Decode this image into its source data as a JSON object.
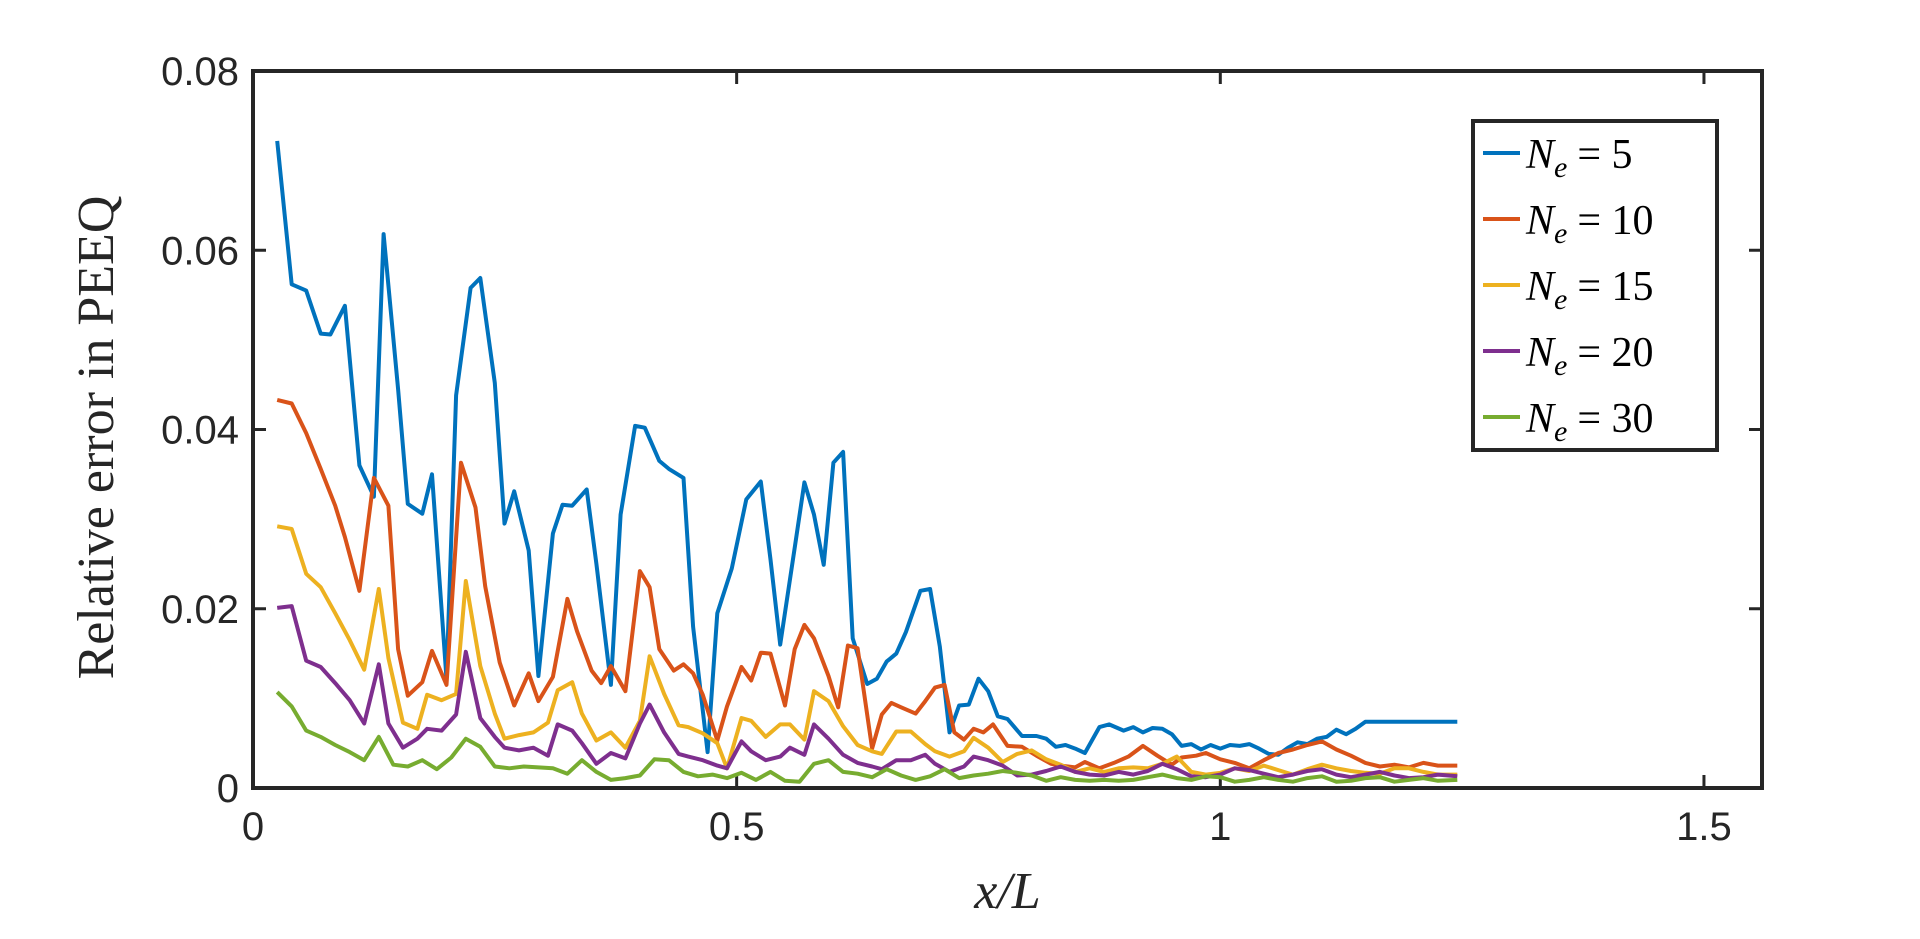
{
  "chart_data": {
    "type": "line",
    "xlabel": "x/L",
    "ylabel": "Relative error in PEEQ",
    "xlim": [
      0,
      1.56
    ],
    "ylim": [
      0,
      0.08
    ],
    "xticks": [
      0,
      0.5,
      1,
      1.5
    ],
    "xtick_labels": [
      "0",
      "0.5",
      "1",
      "1.5"
    ],
    "yticks": [
      0,
      0.02,
      0.04,
      0.06,
      0.08
    ],
    "ytick_labels": [
      "0",
      "0.02",
      "0.04",
      "0.06",
      "0.08"
    ],
    "grid": false,
    "legend_position": "top-right",
    "series": [
      {
        "name": "N_e = 5",
        "legend_base": "N",
        "legend_sub": "e",
        "legend_rhs": "= 5",
        "color": "#0072BD",
        "x": [
          0.025,
          0.04,
          0.055,
          0.07,
          0.08,
          0.095,
          0.11,
          0.125,
          0.135,
          0.15,
          0.16,
          0.175,
          0.185,
          0.2,
          0.21,
          0.225,
          0.235,
          0.25,
          0.26,
          0.27,
          0.285,
          0.295,
          0.31,
          0.32,
          0.33,
          0.345,
          0.355,
          0.37,
          0.38,
          0.395,
          0.405,
          0.42,
          0.43,
          0.445,
          0.455,
          0.47,
          0.48,
          0.495,
          0.51,
          0.525,
          0.535,
          0.545,
          0.56,
          0.57,
          0.58,
          0.59,
          0.6,
          0.61,
          0.62,
          0.635,
          0.645,
          0.655,
          0.665,
          0.675,
          0.69,
          0.7,
          0.71,
          0.72,
          0.73,
          0.74,
          0.75,
          0.76,
          0.77,
          0.78,
          0.795,
          0.81,
          0.82,
          0.83,
          0.84,
          0.85,
          0.86,
          0.875,
          0.885,
          0.9,
          0.91,
          0.92,
          0.93,
          0.94,
          0.95,
          0.96,
          0.97,
          0.98,
          0.99,
          1.0,
          1.01,
          1.02,
          1.03,
          1.04,
          1.05,
          1.06,
          1.07,
          1.08,
          1.09,
          1.1,
          1.11,
          1.12,
          1.13,
          1.14,
          1.15,
          1.16,
          1.17,
          1.18,
          1.19,
          1.2,
          1.21,
          1.22,
          1.23,
          1.245
        ],
        "values": [
          0.0722,
          0.0562,
          0.0555,
          0.0507,
          0.0506,
          0.0538,
          0.036,
          0.0325,
          0.0618,
          0.0445,
          0.0317,
          0.0306,
          0.035,
          0.0122,
          0.0438,
          0.0558,
          0.0569,
          0.0452,
          0.0295,
          0.0331,
          0.0265,
          0.0125,
          0.0284,
          0.0316,
          0.0315,
          0.0333,
          0.025,
          0.0115,
          0.0305,
          0.0404,
          0.0402,
          0.0365,
          0.0356,
          0.0346,
          0.018,
          0.004,
          0.0195,
          0.0245,
          0.0322,
          0.0342,
          0.0255,
          0.016,
          0.0268,
          0.0341,
          0.0305,
          0.0249,
          0.0363,
          0.0375,
          0.0167,
          0.0116,
          0.0122,
          0.0141,
          0.015,
          0.0174,
          0.022,
          0.0222,
          0.0158,
          0.0062,
          0.0092,
          0.0093,
          0.0122,
          0.0108,
          0.008,
          0.0077,
          0.0058,
          0.0058,
          0.0055,
          0.0046,
          0.0048,
          0.0044,
          0.0039,
          0.0068,
          0.0071,
          0.0064,
          0.0068,
          0.0062,
          0.0067,
          0.0066,
          0.006,
          0.0047,
          0.0049,
          0.0043,
          0.0048,
          0.0044,
          0.0048,
          0.0047,
          0.0049,
          0.0044,
          0.0038,
          0.0037,
          0.0045,
          0.0051,
          0.0049,
          0.0055,
          0.0057,
          0.0065,
          0.006,
          0.0066,
          0.0074,
          0.0074,
          0.0074,
          0.0074,
          0.0074,
          0.0074,
          0.0074,
          0.0074,
          0.0074,
          0.0074
        ]
      },
      {
        "name": "N_e = 10",
        "legend_base": "N",
        "legend_sub": "e",
        "legend_rhs": "= 10",
        "color": "#D95319",
        "x": [
          0.025,
          0.04,
          0.055,
          0.07,
          0.085,
          0.095,
          0.11,
          0.125,
          0.14,
          0.15,
          0.16,
          0.175,
          0.185,
          0.2,
          0.215,
          0.23,
          0.24,
          0.255,
          0.27,
          0.285,
          0.295,
          0.31,
          0.325,
          0.335,
          0.35,
          0.36,
          0.37,
          0.385,
          0.4,
          0.41,
          0.42,
          0.435,
          0.445,
          0.455,
          0.465,
          0.48,
          0.49,
          0.505,
          0.515,
          0.525,
          0.535,
          0.55,
          0.56,
          0.57,
          0.58,
          0.595,
          0.605,
          0.615,
          0.625,
          0.64,
          0.65,
          0.66,
          0.67,
          0.685,
          0.695,
          0.705,
          0.715,
          0.725,
          0.735,
          0.745,
          0.755,
          0.765,
          0.78,
          0.795,
          0.81,
          0.825,
          0.835,
          0.85,
          0.86,
          0.875,
          0.89,
          0.905,
          0.92,
          0.935,
          0.95,
          0.96,
          0.975,
          0.985,
          1.0,
          1.015,
          1.03,
          1.045,
          1.06,
          1.075,
          1.09,
          1.105,
          1.12,
          1.135,
          1.15,
          1.165,
          1.18,
          1.195,
          1.21,
          1.225,
          1.245
        ],
        "values": [
          0.0433,
          0.0429,
          0.0396,
          0.0356,
          0.0315,
          0.028,
          0.022,
          0.0346,
          0.0315,
          0.0155,
          0.0103,
          0.0118,
          0.0153,
          0.0115,
          0.0363,
          0.0313,
          0.0225,
          0.014,
          0.0092,
          0.0128,
          0.0097,
          0.0124,
          0.0211,
          0.0175,
          0.0131,
          0.0117,
          0.0136,
          0.0108,
          0.0242,
          0.0224,
          0.0155,
          0.0131,
          0.0138,
          0.0128,
          0.0104,
          0.0053,
          0.0091,
          0.0135,
          0.012,
          0.0151,
          0.015,
          0.0092,
          0.0155,
          0.0182,
          0.0167,
          0.0125,
          0.009,
          0.0159,
          0.0156,
          0.0044,
          0.0082,
          0.0095,
          0.009,
          0.0083,
          0.0097,
          0.0112,
          0.0115,
          0.0062,
          0.0054,
          0.0066,
          0.0062,
          0.0071,
          0.0047,
          0.0046,
          0.0036,
          0.0027,
          0.0025,
          0.0023,
          0.0029,
          0.0022,
          0.0028,
          0.0035,
          0.0047,
          0.0036,
          0.0026,
          0.0034,
          0.0036,
          0.0039,
          0.0032,
          0.0028,
          0.0022,
          0.0031,
          0.0039,
          0.0043,
          0.0048,
          0.0052,
          0.0043,
          0.0036,
          0.0028,
          0.0024,
          0.0026,
          0.0023,
          0.0028,
          0.0025,
          0.0025
        ]
      },
      {
        "name": "N_e = 15",
        "legend_base": "N",
        "legend_sub": "e",
        "legend_rhs": "= 15",
        "color": "#EDB120",
        "x": [
          0.025,
          0.04,
          0.055,
          0.07,
          0.085,
          0.1,
          0.115,
          0.13,
          0.14,
          0.155,
          0.17,
          0.18,
          0.195,
          0.21,
          0.22,
          0.235,
          0.25,
          0.26,
          0.275,
          0.29,
          0.305,
          0.315,
          0.33,
          0.34,
          0.355,
          0.37,
          0.385,
          0.4,
          0.41,
          0.425,
          0.44,
          0.45,
          0.465,
          0.48,
          0.49,
          0.505,
          0.515,
          0.53,
          0.545,
          0.555,
          0.57,
          0.58,
          0.595,
          0.61,
          0.625,
          0.64,
          0.65,
          0.665,
          0.68,
          0.695,
          0.705,
          0.72,
          0.735,
          0.745,
          0.76,
          0.775,
          0.79,
          0.805,
          0.82,
          0.835,
          0.85,
          0.865,
          0.88,
          0.895,
          0.91,
          0.925,
          0.94,
          0.955,
          0.97,
          0.985,
          1.0,
          1.015,
          1.03,
          1.045,
          1.06,
          1.075,
          1.09,
          1.105,
          1.12,
          1.135,
          1.15,
          1.165,
          1.18,
          1.195,
          1.21,
          1.225,
          1.245
        ],
        "values": [
          0.0292,
          0.0289,
          0.0239,
          0.0224,
          0.0195,
          0.0165,
          0.0132,
          0.0222,
          0.0145,
          0.0073,
          0.0066,
          0.0104,
          0.0098,
          0.0105,
          0.0231,
          0.0136,
          0.0083,
          0.0055,
          0.0059,
          0.0062,
          0.0073,
          0.0109,
          0.0118,
          0.0083,
          0.0053,
          0.0062,
          0.0045,
          0.0075,
          0.0147,
          0.0105,
          0.007,
          0.0068,
          0.0061,
          0.005,
          0.0022,
          0.0078,
          0.0075,
          0.0057,
          0.0071,
          0.0071,
          0.0054,
          0.0108,
          0.0097,
          0.0069,
          0.0048,
          0.0041,
          0.0038,
          0.0063,
          0.0063,
          0.0049,
          0.0041,
          0.0035,
          0.0041,
          0.0056,
          0.0045,
          0.0029,
          0.0038,
          0.0042,
          0.0032,
          0.0026,
          0.0018,
          0.0022,
          0.0018,
          0.0022,
          0.0023,
          0.0022,
          0.0027,
          0.0035,
          0.0018,
          0.0015,
          0.0017,
          0.0022,
          0.0019,
          0.0025,
          0.002,
          0.0015,
          0.0021,
          0.0026,
          0.0022,
          0.0019,
          0.0017,
          0.0016,
          0.0022,
          0.0022,
          0.0018,
          0.0015,
          0.0015
        ]
      },
      {
        "name": "N_e = 20",
        "legend_base": "N",
        "legend_sub": "e",
        "legend_rhs": "= 20",
        "color": "#7E2F8E",
        "x": [
          0.025,
          0.04,
          0.055,
          0.07,
          0.085,
          0.1,
          0.115,
          0.13,
          0.14,
          0.155,
          0.17,
          0.18,
          0.195,
          0.21,
          0.22,
          0.235,
          0.25,
          0.26,
          0.275,
          0.29,
          0.305,
          0.315,
          0.33,
          0.34,
          0.355,
          0.37,
          0.385,
          0.4,
          0.41,
          0.425,
          0.44,
          0.45,
          0.465,
          0.48,
          0.49,
          0.505,
          0.515,
          0.53,
          0.545,
          0.555,
          0.57,
          0.58,
          0.595,
          0.61,
          0.625,
          0.64,
          0.65,
          0.665,
          0.68,
          0.695,
          0.705,
          0.72,
          0.735,
          0.745,
          0.76,
          0.775,
          0.79,
          0.805,
          0.82,
          0.835,
          0.85,
          0.865,
          0.88,
          0.895,
          0.91,
          0.925,
          0.94,
          0.955,
          0.97,
          0.985,
          1.0,
          1.015,
          1.03,
          1.045,
          1.06,
          1.075,
          1.09,
          1.105,
          1.12,
          1.135,
          1.15,
          1.165,
          1.18,
          1.195,
          1.21,
          1.225,
          1.245
        ],
        "values": [
          0.0201,
          0.0203,
          0.0142,
          0.0135,
          0.0117,
          0.0098,
          0.0072,
          0.0138,
          0.0072,
          0.0045,
          0.0055,
          0.0066,
          0.0064,
          0.0082,
          0.0152,
          0.0078,
          0.0057,
          0.0045,
          0.0042,
          0.0045,
          0.0036,
          0.0071,
          0.0064,
          0.005,
          0.0027,
          0.0039,
          0.0033,
          0.0072,
          0.0093,
          0.0062,
          0.0038,
          0.0035,
          0.0031,
          0.0025,
          0.0022,
          0.0052,
          0.0041,
          0.0031,
          0.0035,
          0.0045,
          0.0037,
          0.0071,
          0.0055,
          0.0037,
          0.0028,
          0.0024,
          0.0021,
          0.0031,
          0.0031,
          0.0037,
          0.0027,
          0.0018,
          0.0024,
          0.0035,
          0.0031,
          0.0025,
          0.0014,
          0.0015,
          0.0019,
          0.0024,
          0.0018,
          0.0015,
          0.0014,
          0.0018,
          0.0015,
          0.0019,
          0.0027,
          0.0021,
          0.0013,
          0.0012,
          0.0015,
          0.0022,
          0.002,
          0.0016,
          0.0012,
          0.0015,
          0.0019,
          0.0021,
          0.0015,
          0.0012,
          0.0015,
          0.0018,
          0.0014,
          0.0011,
          0.0012,
          0.0015,
          0.0013
        ]
      },
      {
        "name": "N_e = 30",
        "legend_base": "N",
        "legend_sub": "e",
        "legend_rhs": "= 30",
        "color": "#77AC30",
        "x": [
          0.025,
          0.04,
          0.055,
          0.07,
          0.085,
          0.1,
          0.115,
          0.13,
          0.145,
          0.16,
          0.175,
          0.19,
          0.205,
          0.22,
          0.235,
          0.25,
          0.265,
          0.28,
          0.295,
          0.31,
          0.325,
          0.34,
          0.355,
          0.37,
          0.385,
          0.4,
          0.415,
          0.43,
          0.445,
          0.46,
          0.475,
          0.49,
          0.505,
          0.52,
          0.535,
          0.55,
          0.565,
          0.58,
          0.595,
          0.61,
          0.625,
          0.64,
          0.655,
          0.67,
          0.685,
          0.7,
          0.715,
          0.73,
          0.745,
          0.76,
          0.775,
          0.79,
          0.805,
          0.82,
          0.835,
          0.85,
          0.865,
          0.88,
          0.895,
          0.91,
          0.925,
          0.94,
          0.955,
          0.97,
          0.985,
          1.0,
          1.015,
          1.03,
          1.045,
          1.06,
          1.075,
          1.09,
          1.105,
          1.12,
          1.135,
          1.15,
          1.165,
          1.18,
          1.195,
          1.21,
          1.225,
          1.245
        ],
        "values": [
          0.0107,
          0.0091,
          0.0064,
          0.0057,
          0.0048,
          0.004,
          0.0031,
          0.0057,
          0.0026,
          0.0024,
          0.0031,
          0.0021,
          0.0034,
          0.0055,
          0.0046,
          0.0024,
          0.0022,
          0.0024,
          0.0023,
          0.0022,
          0.0016,
          0.0031,
          0.0018,
          0.0009,
          0.0011,
          0.0014,
          0.0032,
          0.0031,
          0.0018,
          0.0013,
          0.0015,
          0.0011,
          0.0017,
          0.0009,
          0.0018,
          0.0008,
          0.0007,
          0.0027,
          0.0031,
          0.0018,
          0.0016,
          0.0012,
          0.0021,
          0.0014,
          0.0009,
          0.0013,
          0.0021,
          0.0011,
          0.0014,
          0.0016,
          0.0019,
          0.0017,
          0.0014,
          0.0008,
          0.0012,
          0.0009,
          0.0008,
          0.0009,
          0.0008,
          0.0009,
          0.0012,
          0.0015,
          0.0011,
          0.0009,
          0.0013,
          0.0012,
          0.0007,
          0.0009,
          0.0012,
          0.0009,
          0.0007,
          0.0011,
          0.0013,
          0.0007,
          0.0008,
          0.0011,
          0.0012,
          0.0007,
          0.0009,
          0.0011,
          0.0008,
          0.0009
        ]
      }
    ]
  }
}
